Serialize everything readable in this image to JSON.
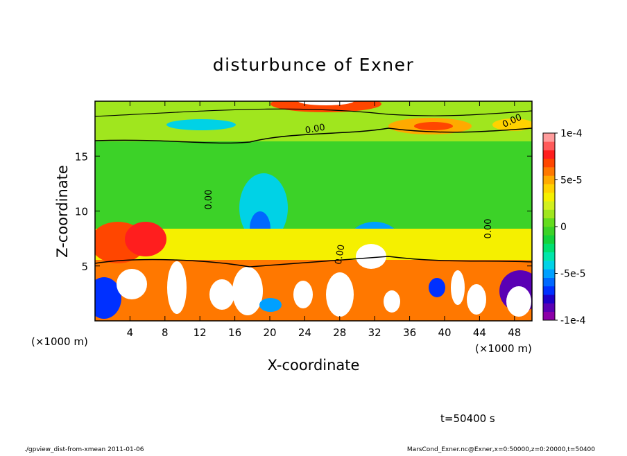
{
  "chart_data": {
    "type": "contour",
    "title": "disturbunce of Exner",
    "xlabel": "X-coordinate",
    "ylabel": "Z-coordinate",
    "xunit_left": "(×1000 m)",
    "xunit_right": "(×1000 m)",
    "time_label": "t=50400 s",
    "footer_left": "./gpview_dist-from-xmean  2011-01-06",
    "footer_right": "MarsCond_Exner.nc@Exner,x=0:50000,z=0:20000,t=50400",
    "contour_labels": [
      "0.00",
      "0.00",
      "0.00",
      "0.00",
      "0.00"
    ],
    "xlim": [
      0,
      50
    ],
    "xticks": [
      4,
      8,
      12,
      16,
      20,
      24,
      28,
      32,
      36,
      40,
      44,
      48
    ],
    "ylim": [
      0,
      20
    ],
    "yticks": [
      5,
      10,
      15
    ],
    "colorbar": {
      "lim": [
        -0.0001,
        0.0001
      ],
      "ticks": [
        {
          "value": 0.0001,
          "label": "1e-4"
        },
        {
          "value": 5e-05,
          "label": "5e-5"
        },
        0,
        {
          "value": -5e-05,
          "label": "-5e-5"
        },
        {
          "value": -0.0001,
          "label": "-1e-4"
        }
      ],
      "colors": [
        "#8c00a8",
        "#5a00b4",
        "#1e00c8",
        "#0030ff",
        "#0068ff",
        "#00a0ff",
        "#00d2e6",
        "#00e6aa",
        "#00e070",
        "#14d23c",
        "#3cd228",
        "#64dc1e",
        "#a0e61e",
        "#d2f01e",
        "#f5f000",
        "#ffd200",
        "#ffaa00",
        "#ff7800",
        "#ff4600",
        "#ff1e1e",
        "#ff5a5a",
        "#ff9c9c"
      ]
    }
  }
}
